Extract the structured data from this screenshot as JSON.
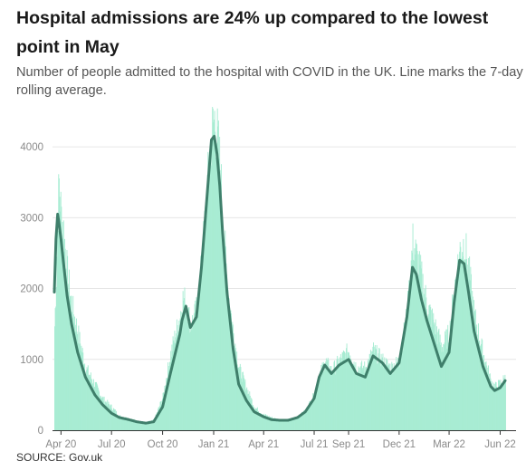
{
  "title": "Hospital admissions are 24% up compared to the lowest point in May",
  "subtitle": "Number of people admitted to the hospital with COVID in the UK. Line marks the 7-day rolling average.",
  "source": "SOURCE: Gov.uk",
  "chart_data": {
    "type": "bar",
    "overlay": "line (7-day rolling average)",
    "x_tick_labels": [
      "Apr 20",
      "Jul 20",
      "Oct 20",
      "Jan 21",
      "Apr 21",
      "Jul 21",
      "Sep 21",
      "Dec 21",
      "Mar 22",
      "Jun 22"
    ],
    "y_ticks": [
      0,
      1000,
      2000,
      3000,
      4000
    ],
    "ylim": [
      0,
      4500
    ],
    "grid": true,
    "colors": {
      "bars": "#a8ecd3",
      "line": "#3f7f6b",
      "grid": "#e6e6e6",
      "axis": "#333333"
    },
    "x": [
      "2020-03-20",
      "2020-03-23",
      "2020-03-26",
      "2020-03-28",
      "2020-04-01",
      "2020-04-05",
      "2020-04-12",
      "2020-04-20",
      "2020-05-01",
      "2020-05-15",
      "2020-06-01",
      "2020-06-15",
      "2020-07-01",
      "2020-07-15",
      "2020-08-01",
      "2020-08-15",
      "2020-09-01",
      "2020-09-15",
      "2020-10-01",
      "2020-10-15",
      "2020-11-01",
      "2020-11-05",
      "2020-11-12",
      "2020-11-20",
      "2020-12-01",
      "2020-12-10",
      "2020-12-20",
      "2020-12-28",
      "2021-01-02",
      "2021-01-07",
      "2021-01-12",
      "2021-01-17",
      "2021-01-25",
      "2021-02-05",
      "2021-02-15",
      "2021-03-01",
      "2021-03-15",
      "2021-04-01",
      "2021-04-15",
      "2021-05-01",
      "2021-05-15",
      "2021-06-01",
      "2021-06-15",
      "2021-07-01",
      "2021-07-10",
      "2021-07-20",
      "2021-08-01",
      "2021-08-15",
      "2021-09-01",
      "2021-09-15",
      "2021-10-01",
      "2021-10-15",
      "2021-11-01",
      "2021-11-15",
      "2021-12-01",
      "2021-12-15",
      "2021-12-25",
      "2022-01-01",
      "2022-01-10",
      "2022-01-20",
      "2022-02-01",
      "2022-02-15",
      "2022-03-01",
      "2022-03-10",
      "2022-03-20",
      "2022-03-28",
      "2022-04-05",
      "2022-04-15",
      "2022-05-01",
      "2022-05-15",
      "2022-05-22",
      "2022-06-01",
      "2022-06-10"
    ],
    "daily_admissions": [
      1500,
      2200,
      3200,
      3550,
      3100,
      2900,
      2250,
      1800,
      1400,
      900,
      650,
      450,
      330,
      200,
      170,
      130,
      110,
      140,
      480,
      1100,
      1650,
      1900,
      1850,
      1500,
      1750,
      2400,
      3500,
      4300,
      4480,
      4200,
      3800,
      3050,
      2100,
      1400,
      900,
      600,
      330,
      220,
      180,
      140,
      150,
      190,
      280,
      520,
      780,
      1000,
      850,
      1000,
      1150,
      900,
      900,
      1150,
      1000,
      900,
      1000,
      1700,
      2700,
      2500,
      2200,
      1800,
      1550,
      1200,
      1400,
      2050,
      2600,
      2700,
      2300,
      1650,
      1100,
      700,
      620,
      680,
      760
    ],
    "rolling_average": [
      1950,
      2700,
      3050,
      2950,
      2700,
      2400,
      1900,
      1500,
      1100,
      750,
      500,
      360,
      240,
      180,
      150,
      120,
      100,
      120,
      330,
      800,
      1350,
      1550,
      1750,
      1450,
      1600,
      2300,
      3300,
      4100,
      4150,
      3900,
      3450,
      2800,
      1950,
      1150,
      650,
      420,
      260,
      190,
      150,
      140,
      140,
      180,
      260,
      450,
      750,
      920,
      800,
      920,
      1000,
      800,
      750,
      1050,
      950,
      800,
      950,
      1600,
      2300,
      2200,
      1850,
      1550,
      1250,
      900,
      1100,
      1800,
      2400,
      2350,
      1950,
      1400,
      900,
      620,
      560,
      600,
      700
    ]
  }
}
